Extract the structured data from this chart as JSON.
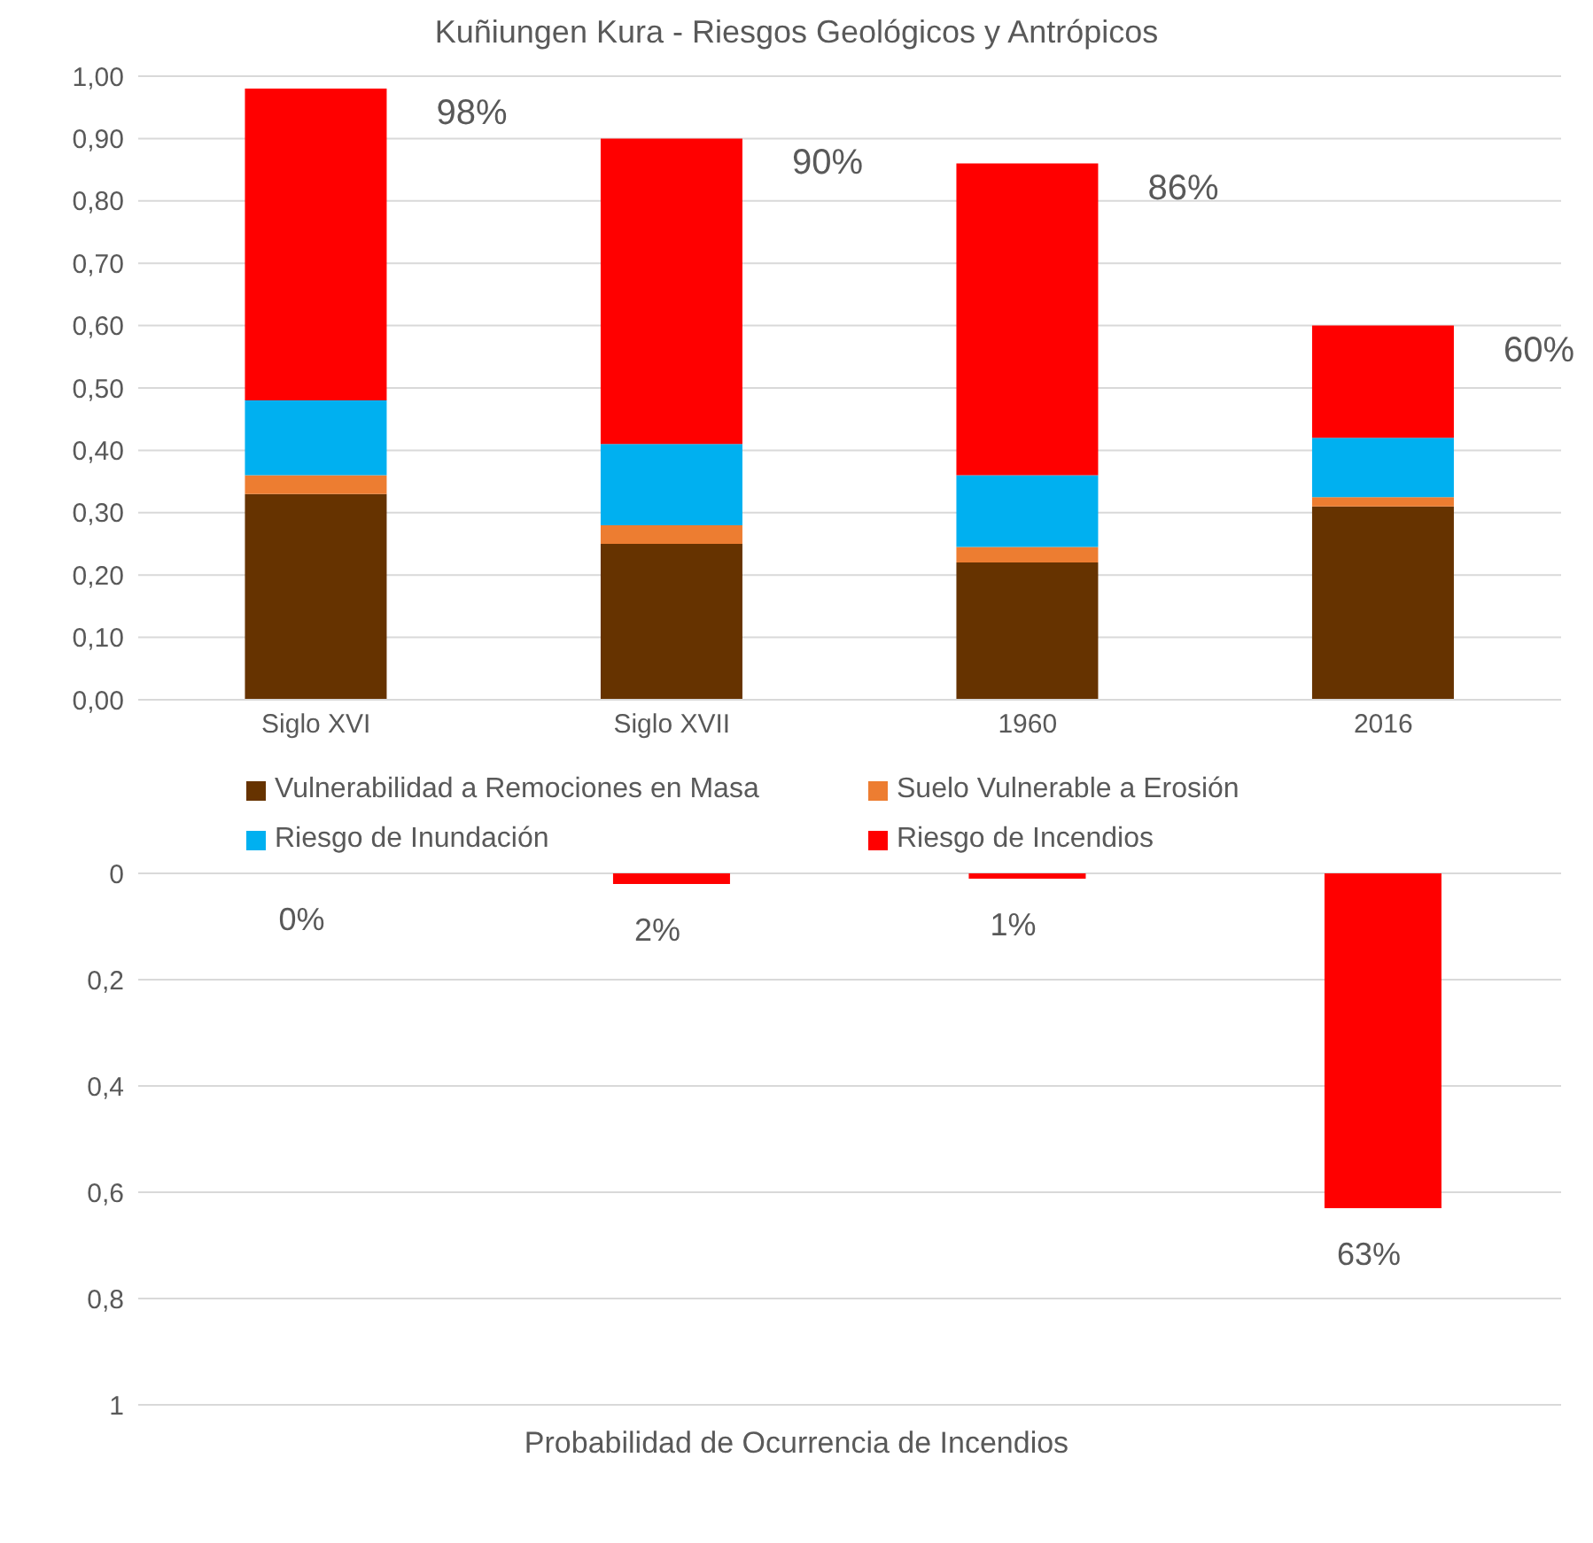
{
  "chart_data": [
    {
      "type": "bar",
      "title": "Kuñiungen Kura - Riesgos Geológicos y Antrópicos",
      "categories": [
        "Siglo XVI",
        "Siglo XVII",
        "1960",
        "2016"
      ],
      "stacked": true,
      "series": [
        {
          "name": "Vulnerabilidad a Remociones en Masa",
          "color": "#663300",
          "values": [
            0.33,
            0.25,
            0.22,
            0.31
          ]
        },
        {
          "name": "Suelo Vulnerable a Erosión",
          "color": "#ed7d31",
          "values": [
            0.03,
            0.03,
            0.025,
            0.015
          ]
        },
        {
          "name": "Riesgo de Inundación",
          "color": "#00b0f0",
          "values": [
            0.12,
            0.13,
            0.115,
            0.095
          ]
        },
        {
          "name": "Riesgo de Incendios",
          "color": "#ff0000",
          "values": [
            0.5,
            0.49,
            0.5,
            0.18
          ]
        }
      ],
      "totals": [
        "98%",
        "90%",
        "86%",
        "60%"
      ],
      "ylim": [
        0,
        1
      ],
      "yticks": [
        {
          "value": 0,
          "label": "0,00"
        },
        {
          "value": 0.1,
          "label": "0,10"
        },
        {
          "value": 0.2,
          "label": "0,20"
        },
        {
          "value": 0.3,
          "label": "0,30"
        },
        {
          "value": 0.4,
          "label": "0,40"
        },
        {
          "value": 0.5,
          "label": "0,50"
        },
        {
          "value": 0.6,
          "label": "0,60"
        },
        {
          "value": 0.7,
          "label": "0,70"
        },
        {
          "value": 0.8,
          "label": "0,80"
        },
        {
          "value": 0.9,
          "label": "0,90"
        },
        {
          "value": 1,
          "label": "1,00"
        }
      ],
      "grid": "y",
      "legend": "bottom"
    },
    {
      "type": "bar",
      "xlabel": "Probabilidad de Ocurrencia de Incendios",
      "categories": [
        null,
        null,
        null,
        null
      ],
      "values": [
        0,
        0.02,
        0.01,
        0.63
      ],
      "color": "#ff0000",
      "value_labels": [
        "0%",
        "2%",
        "1%",
        "63%"
      ],
      "ylim": [
        1,
        0
      ],
      "yticks": [
        0,
        {
          "value": 0.2,
          "label": "0,2"
        },
        {
          "value": 0.4,
          "label": "0,4"
        },
        {
          "value": 0.6,
          "label": "0,6"
        },
        {
          "value": 0.8,
          "label": "0,8"
        },
        1
      ],
      "grid": "y"
    }
  ]
}
